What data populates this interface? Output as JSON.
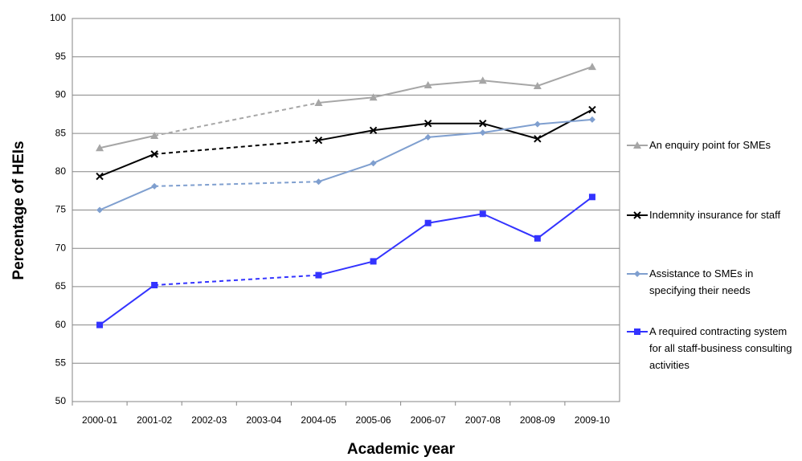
{
  "chart_data": {
    "type": "line",
    "x_label": "Academic year",
    "y_label": "Percentage of HEIs",
    "categories": [
      "2000-01",
      "2001-02",
      "2002-03",
      "2003-04",
      "2004-05",
      "2005-06",
      "2006-07",
      "2007-08",
      "2008-09",
      "2009-10"
    ],
    "series": [
      {
        "name": "An enquiry point for SMEs",
        "color": "#a6a6a6",
        "marker": "triangle",
        "values": [
          83.1,
          84.7,
          null,
          null,
          89.0,
          89.7,
          91.3,
          91.9,
          91.2,
          93.7
        ]
      },
      {
        "name": "Indemnity insurance for staff",
        "color": "#000000",
        "marker": "x",
        "values": [
          79.4,
          82.3,
          null,
          null,
          84.1,
          85.4,
          86.3,
          86.3,
          84.3,
          88.1
        ]
      },
      {
        "name": "Assistance to SMEs in specifying their needs",
        "color": "#7f9fcf",
        "marker": "diamond",
        "values": [
          75.0,
          78.1,
          null,
          null,
          78.7,
          81.1,
          84.5,
          85.1,
          86.2,
          86.8
        ]
      },
      {
        "name": "A required contracting system for all staff-business consulting activities",
        "color": "#3333ff",
        "marker": "square",
        "values": [
          60.0,
          65.2,
          null,
          null,
          66.5,
          68.3,
          73.3,
          74.5,
          71.3,
          76.7
        ]
      }
    ],
    "ylim": [
      50,
      100
    ],
    "yticks": [
      50,
      55,
      60,
      65,
      70,
      75,
      80,
      85,
      90,
      95,
      100
    ],
    "grid": true,
    "bridge_gaps": "dashed",
    "legend": "right"
  }
}
